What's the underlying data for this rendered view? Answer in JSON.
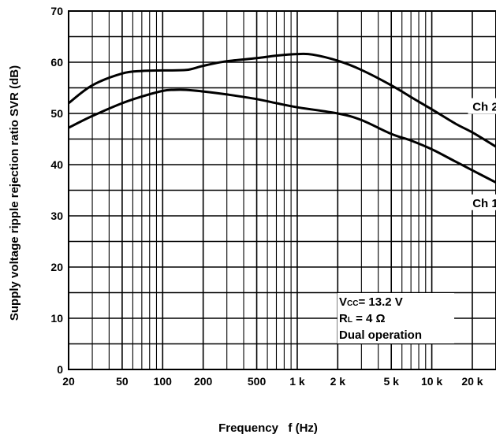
{
  "chart_data": {
    "type": "line",
    "title": "",
    "xlabel": "Frequency   f (Hz)",
    "ylabel": "Supply voltage ripple rejection ratio SVR (dB)",
    "xscale": "log",
    "xlim": [
      20,
      30000
    ],
    "ylim": [
      0,
      70
    ],
    "grid": true,
    "x_ticks": [
      {
        "value": 20,
        "label": "20"
      },
      {
        "value": 50,
        "label": "50"
      },
      {
        "value": 100,
        "label": "100"
      },
      {
        "value": 200,
        "label": "200"
      },
      {
        "value": 500,
        "label": "500"
      },
      {
        "value": 1000,
        "label": "1 k"
      },
      {
        "value": 2000,
        "label": "2 k"
      },
      {
        "value": 5000,
        "label": "5 k"
      },
      {
        "value": 10000,
        "label": "10 k"
      },
      {
        "value": 20000,
        "label": "20 k"
      }
    ],
    "y_ticks": [
      {
        "value": 0,
        "label": "0"
      },
      {
        "value": 10,
        "label": "10"
      },
      {
        "value": 20,
        "label": "20"
      },
      {
        "value": 30,
        "label": "30"
      },
      {
        "value": 40,
        "label": "40"
      },
      {
        "value": 50,
        "label": "50"
      },
      {
        "value": 60,
        "label": "60"
      },
      {
        "value": 70,
        "label": "70"
      }
    ],
    "series": [
      {
        "name": "Ch 2",
        "x": [
          20,
          30,
          50,
          70,
          100,
          150,
          200,
          300,
          500,
          700,
          1000,
          1300,
          2000,
          3000,
          5000,
          7000,
          10000,
          15000,
          20000,
          30000
        ],
        "y": [
          52,
          55.5,
          57.8,
          58.3,
          58.4,
          58.5,
          59.3,
          60.2,
          60.8,
          61.3,
          61.6,
          61.5,
          60.3,
          58.5,
          55.5,
          53.2,
          50.8,
          48,
          46.3,
          43.5
        ]
      },
      {
        "name": "Ch 1",
        "x": [
          20,
          30,
          50,
          70,
          100,
          120,
          150,
          200,
          300,
          500,
          700,
          1000,
          2000,
          3000,
          5000,
          7000,
          10000,
          15000,
          20000,
          30000
        ],
        "y": [
          47.2,
          49.5,
          52,
          53.3,
          54.4,
          54.6,
          54.6,
          54.3,
          53.7,
          52.8,
          52,
          51.2,
          50,
          48.7,
          46,
          44.7,
          43,
          40.6,
          38.9,
          36.5
        ]
      }
    ],
    "annotations": [
      {
        "label": "Ch 2",
        "x": 25000,
        "y": 51.3
      },
      {
        "label": "Ch 1",
        "x": 25000,
        "y": 32.5
      }
    ],
    "conditions": {
      "vcc_main": "V",
      "vcc_sub": "CC",
      "vcc_value": "= 13.2 V",
      "rl_main": "R",
      "rl_sub": "L",
      "rl_value": " = 4 Ω",
      "mode": "Dual operation"
    }
  }
}
